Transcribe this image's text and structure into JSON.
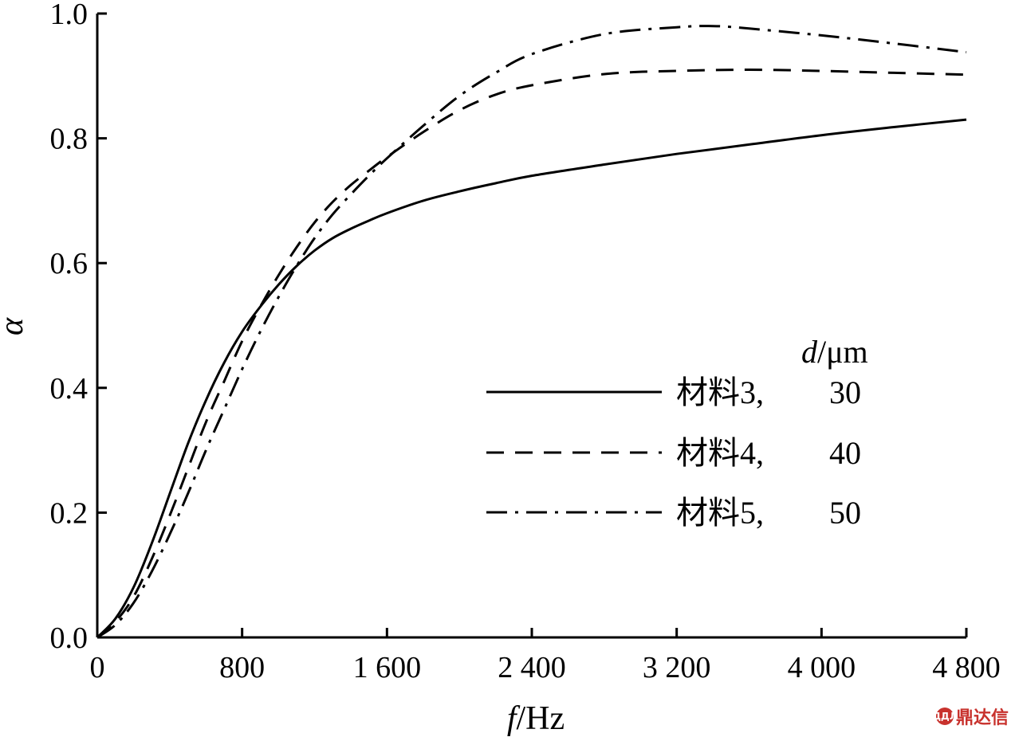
{
  "chart_data": {
    "type": "line",
    "xlabel": {
      "italic": "f",
      "rest": "/Hz"
    },
    "ylabel": "α",
    "xlim": [
      0,
      4800
    ],
    "ylim": [
      0,
      1.0
    ],
    "x_ticks": [
      0,
      800,
      1600,
      2400,
      3200,
      4000,
      4800
    ],
    "x_tick_labels": [
      "0",
      "800",
      "1 600",
      "2 400",
      "3 200",
      "4 000",
      "4 800"
    ],
    "y_ticks": [
      0,
      0.2,
      0.4,
      0.6,
      0.8,
      1.0
    ],
    "y_tick_labels": [
      "0.0",
      "0.2",
      "0.4",
      "0.6",
      "0.8",
      "1.0"
    ],
    "grid": false,
    "legend_position": "right-middle",
    "legend_header": {
      "italic": "d",
      "rest": "/μm"
    },
    "series": [
      {
        "name": "材料3",
        "legend_value": "30",
        "style": "solid",
        "x": [
          0,
          100,
          200,
          300,
          400,
          500,
          600,
          700,
          800,
          900,
          1000,
          1100,
          1200,
          1300,
          1400,
          1500,
          1600,
          1800,
          2000,
          2200,
          2400,
          2800,
          3200,
          3600,
          4000,
          4400,
          4800
        ],
        "y": [
          0,
          0.03,
          0.08,
          0.15,
          0.23,
          0.31,
          0.38,
          0.44,
          0.49,
          0.53,
          0.565,
          0.595,
          0.62,
          0.64,
          0.655,
          0.668,
          0.68,
          0.7,
          0.715,
          0.728,
          0.74,
          0.758,
          0.775,
          0.79,
          0.805,
          0.818,
          0.83
        ]
      },
      {
        "name": "材料4",
        "legend_value": "40",
        "style": "dashed",
        "x": [
          0,
          100,
          200,
          300,
          400,
          500,
          600,
          700,
          800,
          900,
          1000,
          1100,
          1200,
          1300,
          1400,
          1500,
          1600,
          1800,
          2000,
          2200,
          2400,
          2800,
          3200,
          3600,
          4000,
          4400,
          4800
        ],
        "y": [
          0,
          0.025,
          0.065,
          0.125,
          0.195,
          0.27,
          0.345,
          0.41,
          0.475,
          0.53,
          0.58,
          0.625,
          0.665,
          0.698,
          0.725,
          0.748,
          0.77,
          0.81,
          0.845,
          0.87,
          0.885,
          0.903,
          0.908,
          0.91,
          0.908,
          0.905,
          0.902
        ]
      },
      {
        "name": "材料5",
        "legend_value": "50",
        "style": "dashdot",
        "x": [
          0,
          100,
          200,
          300,
          400,
          500,
          600,
          700,
          800,
          900,
          1000,
          1100,
          1200,
          1300,
          1400,
          1500,
          1600,
          1800,
          2000,
          2200,
          2400,
          2800,
          3200,
          3400,
          3600,
          4000,
          4400,
          4800
        ],
        "y": [
          0,
          0.02,
          0.055,
          0.105,
          0.165,
          0.23,
          0.3,
          0.365,
          0.43,
          0.49,
          0.545,
          0.595,
          0.64,
          0.678,
          0.71,
          0.74,
          0.768,
          0.82,
          0.868,
          0.905,
          0.935,
          0.967,
          0.978,
          0.98,
          0.976,
          0.965,
          0.952,
          0.938
        ]
      }
    ]
  },
  "watermark": {
    "mark": "ДДЛ",
    "text": "鼎达信"
  }
}
